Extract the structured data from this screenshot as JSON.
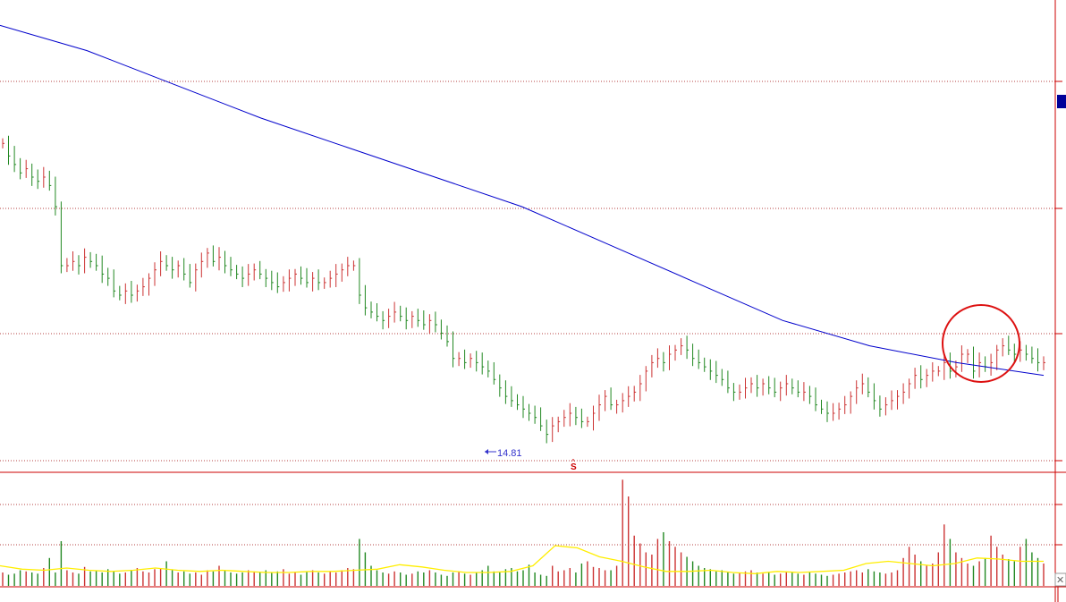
{
  "chart_data": [
    {
      "type": "candlestick",
      "panel": "price",
      "title": "",
      "xlabel": "",
      "ylabel": "",
      "ylim": [
        14.0,
        25.2
      ],
      "grid": true,
      "annotations": {
        "low_label": "14.81",
        "split_marker": "S",
        "highlight": "circle"
      },
      "series": [
        {
          "kind": "ohlc",
          "values": [
            21.8,
            21.5,
            21.3,
            21.1,
            21.2,
            21.0,
            20.9,
            21.0,
            20.8,
            20.3,
            18.9,
            18.9,
            19.0,
            18.9,
            19.1,
            19.0,
            18.9,
            18.7,
            18.6,
            18.3,
            18.2,
            18.3,
            18.2,
            18.3,
            18.4,
            18.6,
            18.8,
            19.0,
            18.9,
            18.8,
            18.9,
            18.7,
            18.5,
            18.8,
            19.0,
            19.2,
            19.0,
            19.1,
            18.9,
            18.8,
            18.7,
            18.6,
            18.7,
            18.8,
            18.7,
            18.6,
            18.5,
            18.4,
            18.5,
            18.6,
            18.7,
            18.6,
            18.5,
            18.6,
            18.5,
            18.5,
            18.6,
            18.7,
            18.8,
            18.9,
            18.9,
            18.2,
            17.9,
            17.8,
            17.7,
            17.6,
            17.7,
            17.8,
            17.7,
            17.6,
            17.7,
            17.6,
            17.5,
            17.6,
            17.5,
            17.3,
            17.1,
            16.7,
            16.7,
            16.6,
            16.7,
            16.6,
            16.5,
            16.4,
            16.2,
            16.0,
            15.8,
            15.7,
            15.6,
            15.5,
            15.4,
            15.3,
            15.1,
            14.9,
            15.1,
            15.2,
            15.3,
            15.4,
            15.3,
            15.2,
            15.2,
            15.4,
            15.6,
            15.8,
            15.6,
            15.6,
            15.7,
            15.8,
            15.9,
            16.1,
            16.4,
            16.6,
            16.7,
            16.6,
            16.8,
            16.9,
            17.0,
            16.9,
            16.7,
            16.6,
            16.5,
            16.4,
            16.3,
            16.2,
            16.0,
            15.9,
            15.9,
            16.0,
            16.1,
            16.0,
            16.1,
            16.0,
            15.9,
            16.0,
            16.1,
            16.0,
            15.9,
            15.9,
            15.8,
            15.6,
            15.5,
            15.4,
            15.4,
            15.5,
            15.6,
            15.8,
            16.0,
            16.1,
            15.9,
            15.7,
            15.5,
            15.6,
            15.7,
            15.8,
            15.9,
            16.1,
            16.3,
            16.2,
            16.3,
            16.4,
            16.4,
            16.6,
            16.4,
            16.5,
            16.8,
            16.8,
            16.4,
            16.6,
            16.5,
            16.6,
            16.9,
            17.0,
            16.9,
            16.8,
            16.9,
            16.8,
            16.7,
            16.6,
            16.6
          ]
        },
        {
          "name": "",
          "kind": "moving-average",
          "color": "#0000cc",
          "values": [
            24.6,
            24.0,
            23.2,
            22.4,
            21.7,
            21.0,
            20.3,
            19.4,
            18.5,
            17.6,
            17.0,
            16.6,
            16.3
          ]
        }
      ]
    },
    {
      "type": "bar",
      "panel": "volume",
      "title": "",
      "xlabel": "",
      "ylabel": "",
      "ylim": [
        0,
        100
      ],
      "grid": true,
      "series": [
        {
          "kind": "volume",
          "values": [
            12,
            10,
            11,
            14,
            13,
            12,
            11,
            16,
            25,
            12,
            40,
            14,
            12,
            11,
            17,
            13,
            14,
            12,
            15,
            13,
            11,
            12,
            14,
            16,
            13,
            12,
            15,
            16,
            22,
            14,
            12,
            13,
            11,
            12,
            10,
            14,
            13,
            18,
            14,
            12,
            11,
            12,
            14,
            13,
            12,
            14,
            12,
            13,
            15,
            11,
            12,
            10,
            13,
            14,
            12,
            11,
            13,
            12,
            14,
            16,
            15,
            42,
            30,
            18,
            14,
            12,
            11,
            13,
            12,
            10,
            11,
            13,
            12,
            14,
            12,
            10,
            9,
            12,
            13,
            11,
            10,
            12,
            14,
            18,
            13,
            12,
            15,
            16,
            13,
            14,
            19,
            12,
            10,
            9,
            18,
            13,
            14,
            16,
            12,
            20,
            22,
            17,
            16,
            14,
            14,
            18,
            95,
            80,
            45,
            38,
            30,
            28,
            42,
            48,
            40,
            35,
            30,
            26,
            22,
            18,
            16,
            15,
            13,
            14,
            12,
            11,
            12,
            13,
            14,
            12,
            11,
            12,
            10,
            11,
            13,
            12,
            11,
            10,
            12,
            11,
            10,
            9,
            10,
            11,
            12,
            13,
            14,
            12,
            15,
            13,
            12,
            11,
            12,
            14,
            25,
            35,
            28,
            22,
            18,
            20,
            30,
            55,
            42,
            30,
            25,
            20,
            18,
            22,
            25,
            45,
            35,
            28,
            24,
            22,
            35,
            42,
            30,
            25,
            20
          ],
          "ma_values": [
            18,
            15,
            14,
            16,
            14,
            13,
            14,
            16,
            14,
            13,
            14,
            13,
            12,
            12,
            13,
            13,
            14,
            15,
            19,
            17,
            14,
            12,
            12,
            13,
            18,
            36,
            34,
            26,
            22,
            17,
            13,
            13,
            14,
            12,
            11,
            13,
            12,
            13,
            14,
            20,
            22,
            20,
            18,
            20,
            25,
            24,
            22,
            22
          ]
        }
      ]
    }
  ]
}
